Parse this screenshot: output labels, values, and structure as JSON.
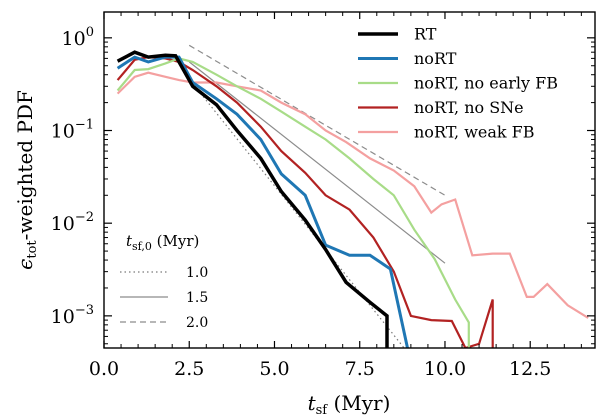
{
  "chart_data": {
    "type": "line",
    "xlabel": "t_sf (Myr)",
    "ylabel": "ε_tot-weighted PDF",
    "xlim": [
      0,
      14.4
    ],
    "ylim": [
      0.00045,
      1.9
    ],
    "yscale": "log",
    "grid": false,
    "xticks": [
      0.0,
      2.5,
      5.0,
      7.5,
      10.0,
      12.5
    ],
    "xtick_labels": [
      "0.0",
      "2.5",
      "5.0",
      "7.5",
      "10.0",
      "12.5"
    ],
    "yticks": [
      0.001,
      0.01,
      0.1,
      1
    ],
    "ytick_labels": [
      "10^−3",
      "10^−2",
      "10^−1",
      "10^0"
    ],
    "legend_placement": "top-right",
    "series": [
      {
        "name": "RT",
        "color": "#000000",
        "width": 3.5,
        "points": [
          [
            0.4,
            0.56
          ],
          [
            0.9,
            0.7
          ],
          [
            1.3,
            0.62
          ],
          [
            1.8,
            0.65
          ],
          [
            2.1,
            0.64
          ],
          [
            2.6,
            0.3
          ],
          [
            3.3,
            0.19
          ],
          [
            3.9,
            0.1
          ],
          [
            4.6,
            0.05
          ],
          [
            5.2,
            0.022
          ],
          [
            5.9,
            0.0108
          ],
          [
            6.5,
            0.0052
          ],
          [
            7.1,
            0.0023
          ],
          [
            7.8,
            0.0014
          ],
          [
            8.3,
            0.001
          ],
          [
            8.3,
            0.00045
          ]
        ]
      },
      {
        "name": "noRT",
        "color": "#1f77b4",
        "width": 3,
        "points": [
          [
            0.4,
            0.47
          ],
          [
            0.9,
            0.62
          ],
          [
            1.3,
            0.55
          ],
          [
            1.8,
            0.62
          ],
          [
            2.2,
            0.62
          ],
          [
            2.6,
            0.33
          ],
          [
            3.3,
            0.22
          ],
          [
            3.9,
            0.15
          ],
          [
            4.6,
            0.08
          ],
          [
            5.2,
            0.034
          ],
          [
            5.9,
            0.02
          ],
          [
            6.5,
            0.0058
          ],
          [
            7.2,
            0.0045
          ],
          [
            7.8,
            0.0045
          ],
          [
            8.4,
            0.0032
          ],
          [
            8.9,
            0.00045
          ]
        ]
      },
      {
        "name": "noRT, no early FB",
        "color": "#a8dc88",
        "width": 2.2,
        "points": [
          [
            0.4,
            0.27
          ],
          [
            0.9,
            0.45
          ],
          [
            1.3,
            0.46
          ],
          [
            1.8,
            0.53
          ],
          [
            2.2,
            0.6
          ],
          [
            2.6,
            0.55
          ],
          [
            3.3,
            0.4
          ],
          [
            3.9,
            0.3
          ],
          [
            4.6,
            0.22
          ],
          [
            5.2,
            0.16
          ],
          [
            5.9,
            0.11
          ],
          [
            6.5,
            0.08
          ],
          [
            7.2,
            0.05
          ],
          [
            7.9,
            0.03
          ],
          [
            8.5,
            0.02
          ],
          [
            9.1,
            0.0085
          ],
          [
            9.7,
            0.0041
          ],
          [
            10.3,
            0.0015
          ],
          [
            10.7,
            0.00085
          ],
          [
            10.7,
            0.00045
          ]
        ]
      },
      {
        "name": "noRT, no SNe",
        "color": "#b22222",
        "width": 2.2,
        "points": [
          [
            0.4,
            0.35
          ],
          [
            0.9,
            0.58
          ],
          [
            1.3,
            0.62
          ],
          [
            1.8,
            0.6
          ],
          [
            2.2,
            0.55
          ],
          [
            2.6,
            0.45
          ],
          [
            3.3,
            0.3
          ],
          [
            3.9,
            0.2
          ],
          [
            4.6,
            0.11
          ],
          [
            5.2,
            0.06
          ],
          [
            5.9,
            0.035
          ],
          [
            6.5,
            0.02
          ],
          [
            7.2,
            0.014
          ],
          [
            7.9,
            0.007
          ],
          [
            8.5,
            0.003
          ],
          [
            9.0,
            0.001
          ],
          [
            9.6,
            0.0009
          ],
          [
            10.2,
            0.00088
          ],
          [
            10.6,
            0.00045
          ],
          [
            11.0,
            0.0005
          ],
          [
            11.4,
            0.0015
          ],
          [
            11.4,
            0.00045
          ]
        ]
      },
      {
        "name": "noRT, weak FB",
        "color": "#f4a0a0",
        "width": 2.2,
        "points": [
          [
            0.4,
            0.25
          ],
          [
            0.9,
            0.38
          ],
          [
            1.3,
            0.42
          ],
          [
            1.8,
            0.38
          ],
          [
            2.2,
            0.35
          ],
          [
            2.6,
            0.33
          ],
          [
            3.3,
            0.33
          ],
          [
            3.9,
            0.3
          ],
          [
            4.6,
            0.27
          ],
          [
            5.2,
            0.2
          ],
          [
            5.9,
            0.15
          ],
          [
            6.5,
            0.1
          ],
          [
            7.1,
            0.075
          ],
          [
            7.8,
            0.05
          ],
          [
            8.5,
            0.037
          ],
          [
            9.1,
            0.025
          ],
          [
            9.6,
            0.013
          ],
          [
            9.9,
            0.016
          ],
          [
            10.3,
            0.018
          ],
          [
            10.8,
            0.0045
          ],
          [
            11.4,
            0.0047
          ],
          [
            11.9,
            0.0047
          ],
          [
            12.4,
            0.0016
          ],
          [
            12.6,
            0.0016
          ],
          [
            13.0,
            0.0022
          ],
          [
            13.6,
            0.0013
          ],
          [
            14.2,
            0.00095
          ]
        ]
      }
    ],
    "reference_lines": [
      {
        "name": "1.0",
        "style": "dotted",
        "color": "#7a7a7a",
        "points": [
          [
            2.5,
            0.36
          ],
          [
            8.8,
            0.00045
          ]
        ]
      },
      {
        "name": "1.5",
        "style": "solid",
        "color": "#8c8c8c",
        "points": [
          [
            2.5,
            0.55
          ],
          [
            10.0,
            0.0037
          ]
        ]
      },
      {
        "name": "2.0",
        "style": "dashed",
        "color": "#8c8c8c",
        "points": [
          [
            2.5,
            0.83
          ],
          [
            10.0,
            0.02
          ]
        ]
      }
    ],
    "legend_ref_title": "t_sf,0 (Myr)"
  }
}
